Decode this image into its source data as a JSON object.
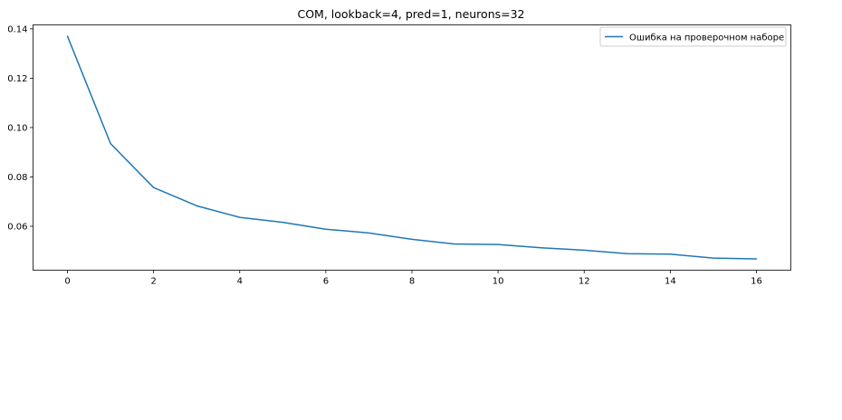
{
  "chart_data": {
    "type": "line",
    "title": "СОМ, lookback=4, pred=1, neurons=32",
    "xlabel": "",
    "ylabel": "",
    "x": [
      0,
      1,
      2,
      3,
      4,
      5,
      6,
      7,
      8,
      9,
      10,
      11,
      12,
      13,
      14,
      15,
      16
    ],
    "series": [
      {
        "name": "Ошибка на проверочном наборе",
        "color": "#1f77b4",
        "values": [
          0.137,
          0.0935,
          0.0757,
          0.0683,
          0.0636,
          0.0616,
          0.0588,
          0.0573,
          0.0547,
          0.0528,
          0.0526,
          0.0513,
          0.0503,
          0.0489,
          0.0487,
          0.0471,
          0.0468
        ]
      }
    ],
    "xlim": [
      -0.8,
      16.8
    ],
    "ylim": [
      0.0422,
      0.1416
    ],
    "xticks": [
      "0",
      "2",
      "4",
      "6",
      "8",
      "10",
      "12",
      "14",
      "16"
    ],
    "yticks": [
      "0.06",
      "0.08",
      "0.10",
      "0.12",
      "0.14"
    ],
    "grid": false,
    "legend_position": "top-right"
  }
}
